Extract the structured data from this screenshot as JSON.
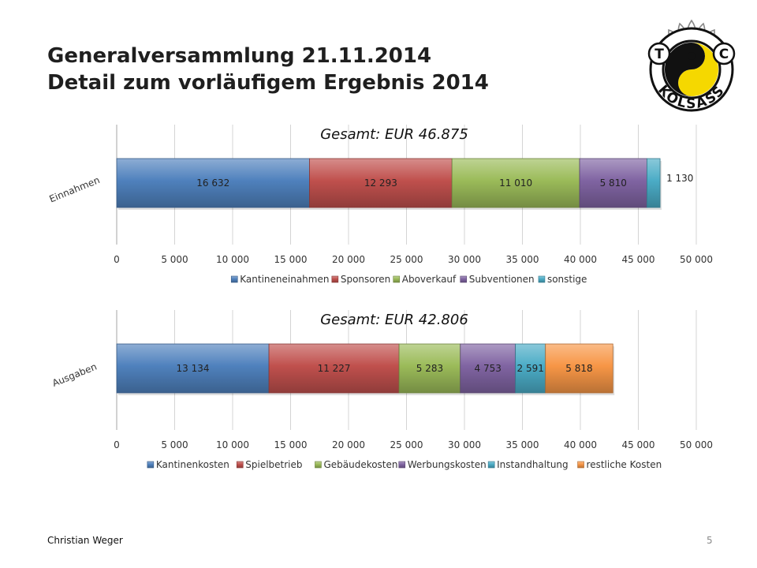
{
  "slide": {
    "title_line1": "Generalversammlung 21.11.2014",
    "title_line2": "Detail zum vorläufigem Ergebnis 2014",
    "author": "Christian  Weger",
    "page_number": "5",
    "logo": {
      "letters": [
        "T",
        "C"
      ],
      "text": "KOLSASS",
      "icon": "tennis-club-sun-logo",
      "colors": {
        "yellow": "#f5d800",
        "black": "#111111"
      }
    }
  },
  "chart_data": [
    {
      "type": "bar",
      "orientation": "horizontal",
      "stacked": true,
      "title": "Gesamt: EUR 46.875",
      "categories": [
        "Einnahmen"
      ],
      "series": [
        {
          "name": "Kantineneinahmen",
          "values": [
            16632
          ],
          "label": "16 632",
          "color": "#4f81bd"
        },
        {
          "name": "Sponsoren",
          "values": [
            12293
          ],
          "label": "12 293",
          "color": "#c0504d"
        },
        {
          "name": "Aboverkauf",
          "values": [
            11010
          ],
          "label": "11 010",
          "color": "#9bbb59"
        },
        {
          "name": "Subventionen",
          "values": [
            5810
          ],
          "label": "5 810",
          "color": "#8064a2"
        },
        {
          "name": "sonstige",
          "values": [
            1130
          ],
          "label": "1 130",
          "color": "#4bacc6"
        }
      ],
      "xlim": [
        0,
        50000
      ],
      "ticks": [
        "0",
        "5 000",
        "10 000",
        "15 000",
        "20 000",
        "25 000",
        "30 000",
        "35 000",
        "40 000",
        "45 000",
        "50 000"
      ],
      "grid": true,
      "legend": "bottom"
    },
    {
      "type": "bar",
      "orientation": "horizontal",
      "stacked": true,
      "title": "Gesamt: EUR 42.806",
      "categories": [
        "Ausgaben"
      ],
      "series": [
        {
          "name": "Kantinenkosten",
          "values": [
            13134
          ],
          "label": "13 134",
          "color": "#4f81bd"
        },
        {
          "name": "Spielbetrieb",
          "values": [
            11227
          ],
          "label": "11 227",
          "color": "#c0504d"
        },
        {
          "name": "Gebäudekosten",
          "values": [
            5283
          ],
          "label": "5 283",
          "color": "#9bbb59"
        },
        {
          "name": "Werbungskosten",
          "values": [
            4753
          ],
          "label": "4 753",
          "color": "#8064a2"
        },
        {
          "name": "Instandhaltung",
          "values": [
            2591
          ],
          "label": "2 591",
          "color": "#4bacc6"
        },
        {
          "name": "restliche Kosten",
          "values": [
            5818
          ],
          "label": "5 818",
          "color": "#f79646"
        }
      ],
      "xlim": [
        0,
        50000
      ],
      "ticks": [
        "0",
        "5 000",
        "10 000",
        "15 000",
        "20 000",
        "25 000",
        "30 000",
        "35 000",
        "40 000",
        "45 000",
        "50 000"
      ],
      "grid": true,
      "legend": "bottom"
    }
  ]
}
